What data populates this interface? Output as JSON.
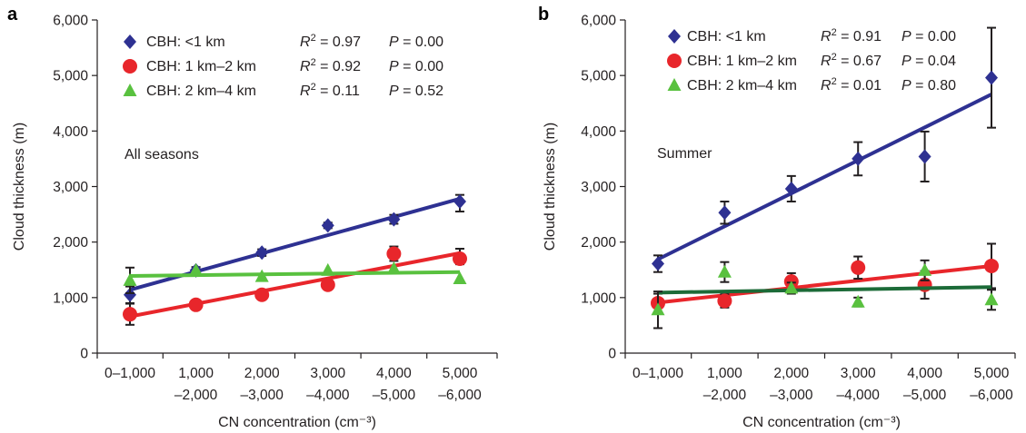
{
  "chart_data": [
    {
      "type": "scatter",
      "panel_label": "a",
      "annotation": "All seasons",
      "xlabel": "CN concentration (cm⁻³)",
      "ylabel": "Cloud thickness (m)",
      "categories": [
        [
          "0–1,000",
          ""
        ],
        [
          "1,000",
          "–2,000"
        ],
        [
          "2,000",
          "–3,000"
        ],
        [
          "3,000",
          "–4,000"
        ],
        [
          "4,000",
          "–5,000"
        ],
        [
          "5,000",
          "–6,000"
        ]
      ],
      "yticks": [
        0,
        1000,
        2000,
        3000,
        4000,
        5000,
        6000
      ],
      "ytick_labels": [
        "0",
        "1,000",
        "2,000",
        "3,000",
        "4,000",
        "5,000",
        "6,000"
      ],
      "ylim": [
        0,
        6000
      ],
      "legend_position": "top-left",
      "series": [
        {
          "name": "CBH: <1 km",
          "marker": "diamond",
          "color": "#2e3192",
          "values": [
            1050,
            1490,
            1810,
            2300,
            2410,
            2730
          ],
          "err_low": [
            150,
            60,
            60,
            50,
            80,
            180
          ],
          "err_high": [
            150,
            60,
            60,
            50,
            80,
            120
          ],
          "fit": [
            1140,
            2780
          ],
          "r2_label": "R",
          "r2_exp": "2",
          "r2_text": " = 0.97",
          "p_label": "P",
          "p_text": " = 0.00"
        },
        {
          "name": "CBH: 1 km–2 km",
          "marker": "circle",
          "color": "#e8262b",
          "values": [
            700,
            870,
            1050,
            1230,
            1790,
            1700
          ],
          "err_low": [
            190,
            50,
            50,
            80,
            130,
            100
          ],
          "err_high": [
            190,
            50,
            50,
            80,
            130,
            180
          ],
          "fit": [
            660,
            1800
          ],
          "r2_label": "R",
          "r2_exp": "2",
          "r2_text": " = 0.92",
          "p_label": "P",
          "p_text": " = 0.00"
        },
        {
          "name": "CBH: 2 km–4 km",
          "marker": "triangle",
          "color": "#59c13f",
          "values": [
            1310,
            1490,
            1380,
            1490,
            1520,
            1340
          ],
          "err_low": [
            230,
            0,
            0,
            0,
            0,
            0
          ],
          "err_high": [
            230,
            0,
            0,
            0,
            0,
            0
          ],
          "fit": [
            1390,
            1460
          ],
          "r2_label": "R",
          "r2_exp": "2",
          "r2_text": " = 0.11",
          "p_label": "P",
          "p_text": " = 0.52"
        }
      ]
    },
    {
      "type": "scatter",
      "panel_label": "b",
      "annotation": "Summer",
      "xlabel": "CN concentration (cm⁻³)",
      "ylabel": "Cloud thickness (m)",
      "categories": [
        [
          "0–1,000",
          ""
        ],
        [
          "1,000",
          "–2,000"
        ],
        [
          "2,000",
          "–3,000"
        ],
        [
          "3,000",
          "–4,000"
        ],
        [
          "4,000",
          "–5,000"
        ],
        [
          "5,000",
          "–6,000"
        ]
      ],
      "yticks": [
        0,
        1000,
        2000,
        3000,
        4000,
        5000,
        6000
      ],
      "ytick_labels": [
        "0",
        "1,000",
        "2,000",
        "3,000",
        "4,000",
        "5,000",
        "6,000"
      ],
      "ylim": [
        0,
        6000
      ],
      "legend_position": "top-left",
      "series": [
        {
          "name": "CBH: <1 km",
          "marker": "diamond",
          "color": "#2e3192",
          "values": [
            1610,
            2530,
            2960,
            3500,
            3540,
            4960
          ],
          "err_low": [
            150,
            200,
            230,
            300,
            450,
            900
          ],
          "err_high": [
            150,
            200,
            230,
            300,
            450,
            900
          ],
          "fit": [
            1690,
            4660
          ],
          "r2_label": "R",
          "r2_exp": "2",
          "r2_text": " = 0.91",
          "p_label": "P",
          "p_text": " = 0.00"
        },
        {
          "name": "CBH: 1 km–2 km",
          "marker": "circle",
          "color": "#e8262b",
          "values": [
            900,
            940,
            1290,
            1540,
            1230,
            1570
          ],
          "err_low": [
            170,
            120,
            150,
            200,
            250,
            400
          ],
          "err_high": [
            170,
            120,
            150,
            200,
            250,
            400
          ],
          "fit": [
            910,
            1570
          ],
          "r2_label": "R",
          "r2_exp": "2",
          "r2_text": " = 0.67",
          "p_label": "P",
          "p_text": " = 0.04"
        },
        {
          "name": "CBH: 2 km–4 km",
          "marker": "triangle",
          "color": "#59c13f",
          "values": [
            780,
            1460,
            1170,
            920,
            1490,
            960
          ],
          "err_low": [
            330,
            180,
            100,
            80,
            180,
            180
          ],
          "err_high": [
            330,
            180,
            100,
            80,
            180,
            180
          ],
          "fit": [
            1090,
            1190
          ],
          "fit_color": "#1c6b38",
          "r2_label": "R",
          "r2_exp": "2",
          "r2_text": " = 0.01",
          "p_label": "P",
          "p_text": " = 0.80"
        }
      ]
    }
  ]
}
